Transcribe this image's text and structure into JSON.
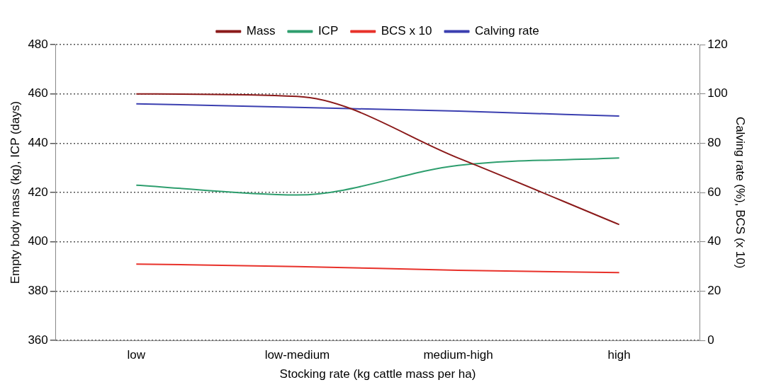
{
  "chart_data": {
    "type": "line",
    "xlabel": "Stocking rate (kg cattle mass per ha)",
    "ylabel": "Empty body mass (kg), ICP (days)",
    "y2label": "Calving rate (%), BCS (x 10)",
    "categories": [
      "low",
      "low-medium",
      "medium-high",
      "high"
    ],
    "series": [
      {
        "name": "Mass",
        "color": "#8b1a1a",
        "values": [
          460,
          459,
          434,
          407
        ]
      },
      {
        "name": "ICP",
        "color": "#2e9e6e",
        "values": [
          423,
          419,
          431,
          434
        ]
      },
      {
        "name": "BCS x 10",
        "color": "#e8312a",
        "values": [
          31,
          30,
          28.5,
          27.5
        ],
        "axis": "y2"
      },
      {
        "name": "Calving rate",
        "color": "#3b3fb0",
        "values": [
          96,
          94.5,
          93,
          91
        ],
        "axis": "y2"
      }
    ],
    "ylim": [
      360,
      480
    ],
    "yticks": [
      360,
      380,
      400,
      420,
      440,
      460,
      480
    ],
    "y2lim": [
      0,
      120
    ],
    "y2ticks": [
      0,
      20,
      40,
      60,
      80,
      100,
      120
    ],
    "grid": "y",
    "legend": "top",
    "marker": "none",
    "line_style": "solid"
  }
}
